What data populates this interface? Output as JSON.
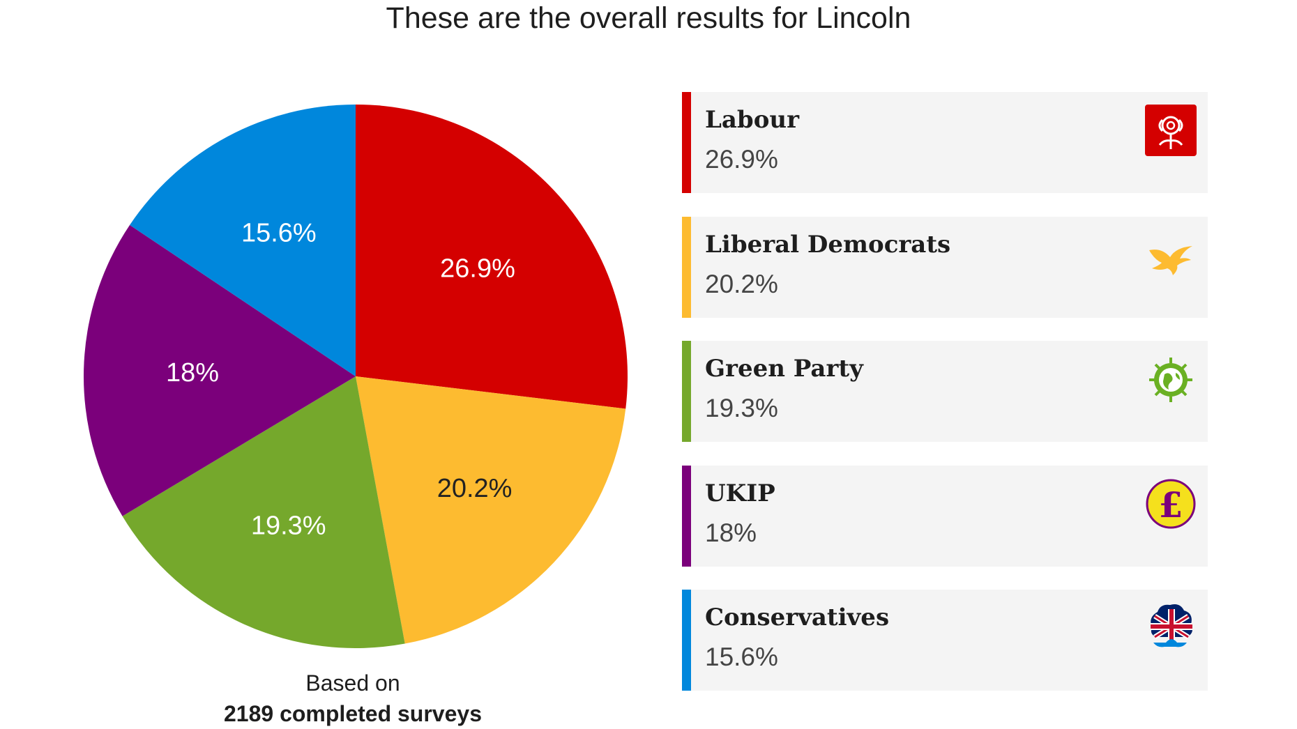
{
  "title": "These are the overall results for Lincoln",
  "footnote": {
    "line1": "Based on",
    "line2": "2189 completed surveys"
  },
  "chart_data": {
    "type": "pie",
    "title": "These are the overall results for Lincoln",
    "slices": [
      {
        "name": "Labour",
        "value": 26.9,
        "label": "26.9%",
        "color": "#d40000",
        "label_color": "#ffffff"
      },
      {
        "name": "Liberal Democrats",
        "value": 20.2,
        "label": "20.2%",
        "color": "#fdbb30",
        "label_color": "#222222"
      },
      {
        "name": "Green Party",
        "value": 19.3,
        "label": "19.3%",
        "color": "#75a82c",
        "label_color": "#ffffff"
      },
      {
        "name": "UKIP",
        "value": 18,
        "label": "18%",
        "color": "#7b007b",
        "label_color": "#ffffff"
      },
      {
        "name": "Conservatives",
        "value": 15.6,
        "label": "15.6%",
        "color": "#0087dc",
        "label_color": "#ffffff"
      }
    ]
  },
  "legend": [
    {
      "name": "Labour",
      "value": "26.9%",
      "color": "#d40000",
      "icon": "labour-rose-icon"
    },
    {
      "name": "Liberal Democrats",
      "value": "20.2%",
      "color": "#fdbb30",
      "icon": "libdem-bird-icon"
    },
    {
      "name": "Green Party",
      "value": "19.3%",
      "color": "#75a82c",
      "icon": "green-globe-icon"
    },
    {
      "name": "UKIP",
      "value": "18%",
      "color": "#7b007b",
      "icon": "ukip-pound-icon"
    },
    {
      "name": "Conservatives",
      "value": "15.6%",
      "color": "#0087dc",
      "icon": "conservative-tree-icon"
    }
  ]
}
